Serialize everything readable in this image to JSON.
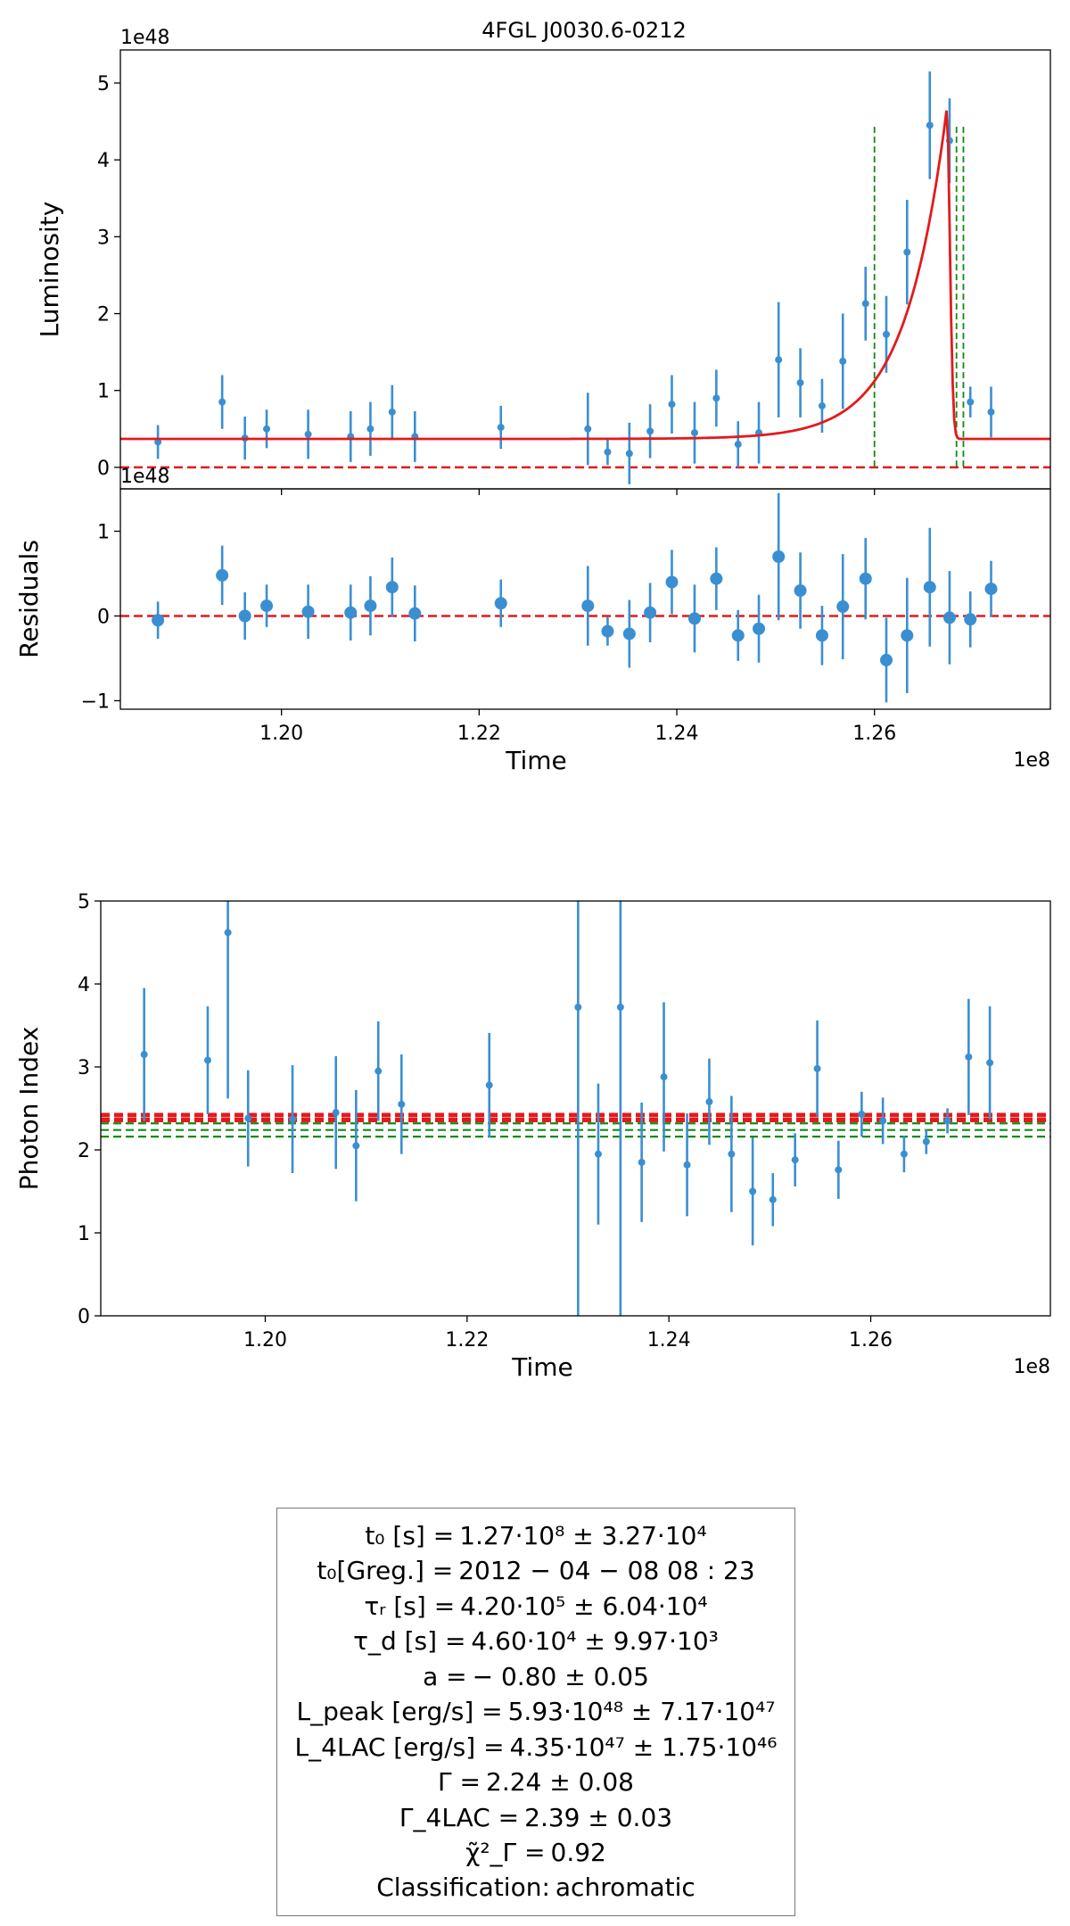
{
  "chart_data": [
    {
      "type": "scatter",
      "panel": "luminosity",
      "title": "4FGL J0030.6-0212",
      "xlabel": "",
      "ylabel": "Luminosity",
      "y_scale_label": "1e48",
      "xlim": [
        1.1837,
        1.2778
      ],
      "ylim": [
        -0.28,
        5.43
      ],
      "yticks": [
        0,
        1,
        2,
        3,
        4,
        5
      ],
      "x_scale": 100000000.0,
      "points": [
        {
          "x": 1.1875,
          "y": 0.33,
          "err": 0.22
        },
        {
          "x": 1.194,
          "y": 0.85,
          "err": 0.35
        },
        {
          "x": 1.1963,
          "y": 0.38,
          "err": 0.28
        },
        {
          "x": 1.1985,
          "y": 0.5,
          "err": 0.25
        },
        {
          "x": 1.2027,
          "y": 0.43,
          "err": 0.32
        },
        {
          "x": 1.207,
          "y": 0.4,
          "err": 0.33
        },
        {
          "x": 1.209,
          "y": 0.5,
          "err": 0.35
        },
        {
          "x": 1.2112,
          "y": 0.72,
          "err": 0.35
        },
        {
          "x": 1.2135,
          "y": 0.4,
          "err": 0.33
        },
        {
          "x": 1.2222,
          "y": 0.52,
          "err": 0.28
        },
        {
          "x": 1.231,
          "y": 0.5,
          "err": 0.47
        },
        {
          "x": 1.233,
          "y": 0.2,
          "err": 0.17
        },
        {
          "x": 1.2352,
          "y": 0.18,
          "err": 0.4
        },
        {
          "x": 1.2373,
          "y": 0.47,
          "err": 0.35
        },
        {
          "x": 1.2395,
          "y": 0.82,
          "err": 0.38
        },
        {
          "x": 1.2418,
          "y": 0.45,
          "err": 0.4
        },
        {
          "x": 1.244,
          "y": 0.9,
          "err": 0.37
        },
        {
          "x": 1.2462,
          "y": 0.3,
          "err": 0.3
        },
        {
          "x": 1.2483,
          "y": 0.45,
          "err": 0.4
        },
        {
          "x": 1.2503,
          "y": 1.4,
          "err": 0.75
        },
        {
          "x": 1.2525,
          "y": 1.1,
          "err": 0.45
        },
        {
          "x": 1.2547,
          "y": 0.8,
          "err": 0.35
        },
        {
          "x": 1.2568,
          "y": 1.38,
          "err": 0.62
        },
        {
          "x": 1.2591,
          "y": 2.13,
          "err": 0.48
        },
        {
          "x": 1.2612,
          "y": 1.73,
          "err": 0.5
        },
        {
          "x": 1.2633,
          "y": 2.8,
          "err": 0.68
        },
        {
          "x": 1.2656,
          "y": 4.45,
          "err": 0.7
        },
        {
          "x": 1.2676,
          "y": 4.25,
          "err": 0.55
        },
        {
          "x": 1.2697,
          "y": 0.85,
          "err": 0.2
        },
        {
          "x": 1.2718,
          "y": 0.72,
          "err": 0.33
        }
      ],
      "model_curve": {
        "label": "fit",
        "baseline": 0.37,
        "peak_time": 1.2673,
        "peak_value": 4.65,
        "rise_time_1e8": 0.0042,
        "decay_time_1e8": 0.00046,
        "shape": 1.0
      },
      "reference_lines": {
        "horizontal_red": 0,
        "vertical_green": [
          1.26,
          1.2683,
          1.269
        ]
      }
    },
    {
      "type": "scatter",
      "panel": "residuals",
      "title": "",
      "xlabel": "Time",
      "ylabel": "Residuals",
      "y_scale_label": "1e48",
      "x_scale_label": "1e8",
      "xlim": [
        1.1837,
        1.2778
      ],
      "ylim": [
        -1.1,
        1.5
      ],
      "yticks": [
        -1,
        0,
        1
      ],
      "xticks": [
        1.2,
        1.22,
        1.24,
        1.26
      ],
      "xtick_labels": [
        "1.20",
        "1.22",
        "1.24",
        "1.26"
      ],
      "points": [
        {
          "x": 1.1875,
          "y": -0.05,
          "err": 0.22
        },
        {
          "x": 1.194,
          "y": 0.48,
          "err": 0.35
        },
        {
          "x": 1.1963,
          "y": 0.0,
          "err": 0.28
        },
        {
          "x": 1.1985,
          "y": 0.12,
          "err": 0.25
        },
        {
          "x": 1.2027,
          "y": 0.05,
          "err": 0.32
        },
        {
          "x": 1.207,
          "y": 0.04,
          "err": 0.33
        },
        {
          "x": 1.209,
          "y": 0.12,
          "err": 0.35
        },
        {
          "x": 1.2112,
          "y": 0.34,
          "err": 0.35
        },
        {
          "x": 1.2135,
          "y": 0.03,
          "err": 0.33
        },
        {
          "x": 1.2222,
          "y": 0.15,
          "err": 0.28
        },
        {
          "x": 1.231,
          "y": 0.12,
          "err": 0.47
        },
        {
          "x": 1.233,
          "y": -0.18,
          "err": 0.17
        },
        {
          "x": 1.2352,
          "y": -0.21,
          "err": 0.4
        },
        {
          "x": 1.2373,
          "y": 0.04,
          "err": 0.35
        },
        {
          "x": 1.2395,
          "y": 0.4,
          "err": 0.38
        },
        {
          "x": 1.2418,
          "y": -0.03,
          "err": 0.4
        },
        {
          "x": 1.244,
          "y": 0.44,
          "err": 0.37
        },
        {
          "x": 1.2462,
          "y": -0.23,
          "err": 0.3
        },
        {
          "x": 1.2483,
          "y": -0.15,
          "err": 0.4
        },
        {
          "x": 1.2503,
          "y": 0.7,
          "err": 0.75
        },
        {
          "x": 1.2525,
          "y": 0.3,
          "err": 0.45
        },
        {
          "x": 1.2547,
          "y": -0.23,
          "err": 0.35
        },
        {
          "x": 1.2568,
          "y": 0.11,
          "err": 0.62
        },
        {
          "x": 1.2591,
          "y": 0.44,
          "err": 0.48
        },
        {
          "x": 1.2612,
          "y": -0.52,
          "err": 0.5
        },
        {
          "x": 1.2633,
          "y": -0.23,
          "err": 0.68
        },
        {
          "x": 1.2656,
          "y": 0.34,
          "err": 0.7
        },
        {
          "x": 1.2676,
          "y": -0.02,
          "err": 0.55
        },
        {
          "x": 1.2697,
          "y": -0.04,
          "err": 0.33
        },
        {
          "x": 1.2718,
          "y": 0.32,
          "err": 0.33
        }
      ],
      "reference_lines": {
        "horizontal_red": 0
      }
    },
    {
      "type": "scatter",
      "panel": "photon_index",
      "title": "",
      "xlabel": "Time",
      "ylabel": "Photon Index",
      "x_scale_label": "1e8",
      "xlim": [
        1.1837,
        1.2778
      ],
      "ylim": [
        0,
        5
      ],
      "yticks": [
        0,
        1,
        2,
        3,
        4,
        5
      ],
      "xticks": [
        1.2,
        1.22,
        1.24,
        1.26
      ],
      "xtick_labels": [
        "1.20",
        "1.22",
        "1.24",
        "1.26"
      ],
      "points": [
        {
          "x": 1.188,
          "y": 3.15,
          "err": 0.8
        },
        {
          "x": 1.1943,
          "y": 3.08,
          "err": 0.65
        },
        {
          "x": 1.1963,
          "y": 4.62,
          "err": 2.0
        },
        {
          "x": 1.1983,
          "y": 2.38,
          "err": 0.58
        },
        {
          "x": 1.2027,
          "y": 2.37,
          "err": 0.65
        },
        {
          "x": 1.207,
          "y": 2.45,
          "err": 0.68
        },
        {
          "x": 1.209,
          "y": 2.05,
          "err": 0.67
        },
        {
          "x": 1.2112,
          "y": 2.95,
          "err": 0.6
        },
        {
          "x": 1.2135,
          "y": 2.55,
          "err": 0.6
        },
        {
          "x": 1.2222,
          "y": 2.78,
          "err": 0.63
        },
        {
          "x": 1.231,
          "y": 3.72,
          "err": 4.0
        },
        {
          "x": 1.233,
          "y": 1.95,
          "err": 0.85
        },
        {
          "x": 1.2352,
          "y": 3.72,
          "err": 4.0
        },
        {
          "x": 1.2373,
          "y": 1.85,
          "err": 0.72
        },
        {
          "x": 1.2395,
          "y": 2.88,
          "err": 0.9
        },
        {
          "x": 1.2418,
          "y": 1.82,
          "err": 0.62
        },
        {
          "x": 1.244,
          "y": 2.58,
          "err": 0.52
        },
        {
          "x": 1.2462,
          "y": 1.95,
          "err": 0.7
        },
        {
          "x": 1.2483,
          "y": 1.5,
          "err": 0.65
        },
        {
          "x": 1.2503,
          "y": 1.4,
          "err": 0.32
        },
        {
          "x": 1.2525,
          "y": 1.88,
          "err": 0.32
        },
        {
          "x": 1.2547,
          "y": 2.98,
          "err": 0.58
        },
        {
          "x": 1.2568,
          "y": 1.76,
          "err": 0.35
        },
        {
          "x": 1.2591,
          "y": 2.43,
          "err": 0.27
        },
        {
          "x": 1.2612,
          "y": 2.35,
          "err": 0.28
        },
        {
          "x": 1.2633,
          "y": 1.95,
          "err": 0.22
        },
        {
          "x": 1.2655,
          "y": 2.1,
          "err": 0.15
        },
        {
          "x": 1.2676,
          "y": 2.35,
          "err": 0.15
        },
        {
          "x": 1.2697,
          "y": 3.12,
          "err": 0.7
        },
        {
          "x": 1.2718,
          "y": 3.05,
          "err": 0.68
        }
      ],
      "reference_lines": {
        "horizontal_red": [
          2.36,
          2.42
        ],
        "horizontal_green": [
          2.16,
          2.24,
          2.32
        ]
      }
    }
  ],
  "fit_parameters": [
    {
      "label": "t₀ [s] =",
      "value": "1.27·10⁸  ±  3.27·10⁴"
    },
    {
      "label": "t₀[Greg.] =",
      "value": "2012 − 04 − 08 08 : 23"
    },
    {
      "label": "τᵣ [s] =",
      "value": "4.20·10⁵  ±  6.04·10⁴"
    },
    {
      "label": "τ_d [s] =",
      "value": "4.60·10⁴  ±  9.97·10³"
    },
    {
      "label": "a =",
      "value": "− 0.80 ±  0.05"
    },
    {
      "label": "L_peak [erg/s] =",
      "value": "5.93·10⁴⁸  ±  7.17·10⁴⁷"
    },
    {
      "label": "L_4LAC [erg/s] =",
      "value": "4.35·10⁴⁷  ±  1.75·10⁴⁶"
    },
    {
      "label": "Γ =",
      "value": "2.24 ± 0.08"
    },
    {
      "label": "Γ_4LAC =",
      "value": "2.39 ± 0.03"
    },
    {
      "label": "χ̃²_Γ =",
      "value": "0.92"
    },
    {
      "label": "Classification:",
      "value": "achromatic"
    }
  ],
  "colors": {
    "points": "#3a8fd2",
    "fit": "#e31a1c",
    "ref_red": "#e31a1c",
    "ref_green": "#138a13"
  }
}
